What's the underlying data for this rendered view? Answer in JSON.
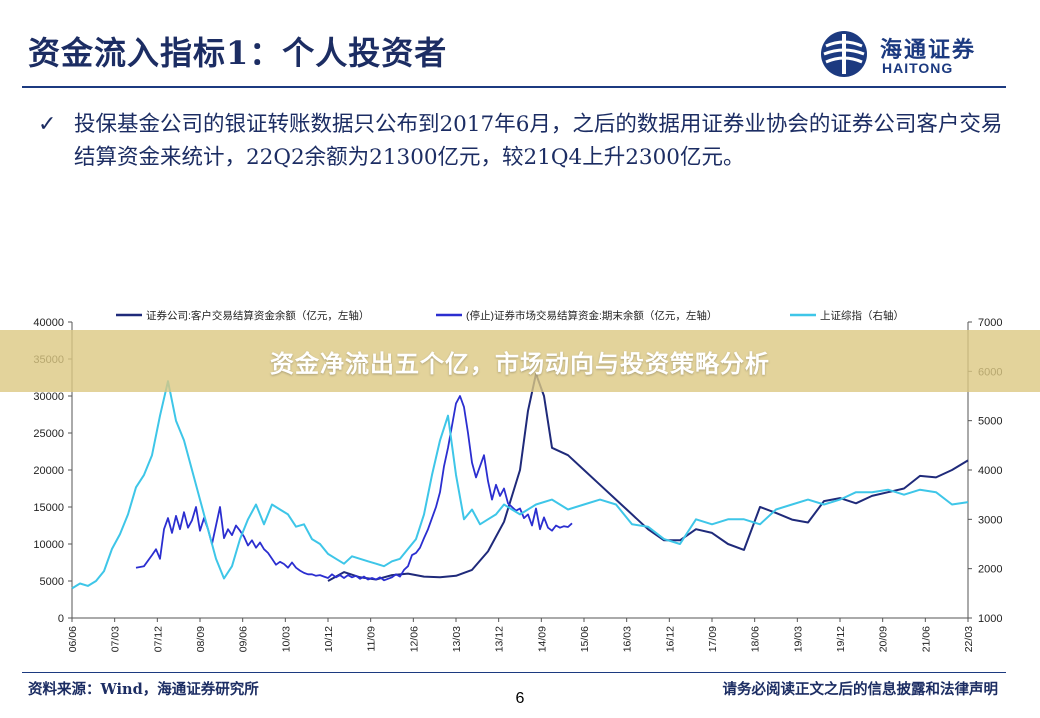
{
  "slide": {
    "title": "资金流入指标1：个人投资者",
    "logo": {
      "cn": "海通证券",
      "en": "HAITONG"
    },
    "bullet": "投保基金公司的银证转账数据只公布到2017年6月，之后的数据用证券业协会的证券公司客户交易结算资金来统计，22Q2余额为21300亿元，较21Q4上升2300亿元。",
    "banner": "资金净流出五个亿，市场动向与投资策略分析",
    "source": "资料来源：Wind，海通证券研究所",
    "disclaimer": "请务必阅读正文之后的信息披露和法律声明",
    "page_number": "6"
  },
  "chart_data": {
    "type": "line",
    "x_ticks": [
      "06/06",
      "07/03",
      "07/12",
      "08/09",
      "09/06",
      "10/03",
      "10/12",
      "11/09",
      "12/06",
      "13/03",
      "13/12",
      "14/09",
      "15/06",
      "16/03",
      "16/12",
      "17/09",
      "18/06",
      "19/03",
      "19/12",
      "20/09",
      "21/06",
      "22/03"
    ],
    "y_left": {
      "ylim": [
        0,
        40000
      ],
      "ticks": [
        "0",
        "5000",
        "10000",
        "15000",
        "20000",
        "25000",
        "30000",
        "35000",
        "40000"
      ]
    },
    "y_right": {
      "ylim": [
        1000,
        7000
      ],
      "ticks": [
        "1000",
        "2000",
        "3000",
        "4000",
        "5000",
        "6000",
        "7000"
      ]
    },
    "series": [
      {
        "name": "证券公司:客户交易结算资金余额（亿元，左轴）",
        "color": "#1f2a7a",
        "axis": "left",
        "points": [
          [
            32,
            5000
          ],
          [
            34,
            6200
          ],
          [
            36,
            5500
          ],
          [
            38,
            5200
          ],
          [
            40,
            5800
          ],
          [
            42,
            6000
          ],
          [
            44,
            5600
          ],
          [
            46,
            5500
          ],
          [
            48,
            5700
          ],
          [
            50,
            6500
          ],
          [
            52,
            9000
          ],
          [
            54,
            13000
          ],
          [
            56,
            20000
          ],
          [
            57,
            28000
          ],
          [
            58,
            33000
          ],
          [
            59,
            30000
          ],
          [
            60,
            23000
          ],
          [
            62,
            22000
          ],
          [
            64,
            20000
          ],
          [
            66,
            18000
          ],
          [
            68,
            16000
          ],
          [
            70,
            14000
          ],
          [
            72,
            12000
          ],
          [
            74,
            10500
          ],
          [
            76,
            10500
          ],
          [
            78,
            12000
          ],
          [
            80,
            11500
          ],
          [
            82,
            10000
          ],
          [
            84,
            9200
          ],
          [
            86,
            15000
          ],
          [
            88,
            14200
          ],
          [
            90,
            13300
          ],
          [
            92,
            12900
          ],
          [
            94,
            15800
          ],
          [
            96,
            16200
          ],
          [
            98,
            15500
          ],
          [
            100,
            16500
          ],
          [
            102,
            17000
          ],
          [
            104,
            17500
          ],
          [
            106,
            19200
          ],
          [
            108,
            19000
          ],
          [
            110,
            20000
          ],
          [
            112,
            21300
          ]
        ]
      },
      {
        "name": "(停止)证券市场交易结算资金:期末余额（亿元，左轴）",
        "color": "#2b2ed0",
        "axis": "left",
        "points": [
          [
            8,
            6800
          ],
          [
            9,
            7000
          ],
          [
            10,
            8500
          ],
          [
            10.5,
            9300
          ],
          [
            11,
            8000
          ],
          [
            11.5,
            12000
          ],
          [
            12,
            13500
          ],
          [
            12.5,
            11500
          ],
          [
            13,
            13800
          ],
          [
            13.5,
            12000
          ],
          [
            14,
            14300
          ],
          [
            14.5,
            12200
          ],
          [
            15,
            13200
          ],
          [
            15.5,
            15000
          ],
          [
            16,
            11800
          ],
          [
            16.5,
            13500
          ],
          [
            17,
            12000
          ],
          [
            17.5,
            10000
          ],
          [
            18,
            12500
          ],
          [
            18.5,
            15000
          ],
          [
            19,
            10800
          ],
          [
            19.5,
            12000
          ],
          [
            20,
            11200
          ],
          [
            20.5,
            12500
          ],
          [
            21,
            11800
          ],
          [
            21.5,
            11000
          ],
          [
            22,
            9800
          ],
          [
            22.5,
            10500
          ],
          [
            23,
            9500
          ],
          [
            23.5,
            10200
          ],
          [
            24,
            9300
          ],
          [
            24.5,
            8800
          ],
          [
            25,
            8000
          ],
          [
            25.5,
            7200
          ],
          [
            26,
            7600
          ],
          [
            26.5,
            7300
          ],
          [
            27,
            6800
          ],
          [
            27.5,
            7500
          ],
          [
            28,
            6800
          ],
          [
            28.5,
            6400
          ],
          [
            29,
            6100
          ],
          [
            29.5,
            5900
          ],
          [
            30,
            5900
          ],
          [
            30.5,
            5700
          ],
          [
            31,
            5800
          ],
          [
            31.5,
            5600
          ],
          [
            32,
            5400
          ],
          [
            32.5,
            5900
          ],
          [
            33,
            5500
          ],
          [
            33.5,
            5800
          ],
          [
            34,
            5400
          ],
          [
            34.5,
            5800
          ],
          [
            35,
            5500
          ],
          [
            35.5,
            5700
          ],
          [
            36,
            5300
          ],
          [
            36.5,
            5600
          ],
          [
            37,
            5200
          ],
          [
            37.5,
            5400
          ],
          [
            38,
            5200
          ],
          [
            38.5,
            5500
          ],
          [
            39,
            5100
          ],
          [
            39.5,
            5300
          ],
          [
            40,
            5500
          ],
          [
            40.5,
            5900
          ],
          [
            41,
            5600
          ],
          [
            41.5,
            6500
          ],
          [
            42,
            7000
          ],
          [
            42.5,
            8500
          ],
          [
            43,
            8800
          ],
          [
            43.5,
            9500
          ],
          [
            44,
            10800
          ],
          [
            44.5,
            12000
          ],
          [
            45,
            13500
          ],
          [
            45.5,
            15000
          ],
          [
            46,
            17000
          ],
          [
            46.5,
            20500
          ],
          [
            47,
            23000
          ],
          [
            47.5,
            26000
          ],
          [
            48,
            29000
          ],
          [
            48.5,
            30000
          ],
          [
            49,
            28500
          ],
          [
            49.5,
            25000
          ],
          [
            50,
            21000
          ],
          [
            50.5,
            19000
          ],
          [
            51,
            20500
          ],
          [
            51.5,
            22000
          ],
          [
            52,
            18500
          ],
          [
            52.5,
            16000
          ],
          [
            53,
            18000
          ],
          [
            53.5,
            16500
          ],
          [
            54,
            17500
          ],
          [
            54.5,
            15500
          ],
          [
            55,
            15000
          ],
          [
            55.5,
            14500
          ],
          [
            56,
            14800
          ],
          [
            56.5,
            13500
          ],
          [
            57,
            14000
          ],
          [
            57.5,
            12500
          ],
          [
            58,
            14800
          ],
          [
            58.5,
            12000
          ],
          [
            59,
            13600
          ],
          [
            59.5,
            12200
          ],
          [
            60,
            11800
          ],
          [
            60.5,
            12500
          ],
          [
            61,
            12200
          ],
          [
            61.5,
            12400
          ],
          [
            62,
            12300
          ],
          [
            62.5,
            12800
          ]
        ]
      },
      {
        "name": "上证综指（右轴）",
        "color": "#3ec6e8",
        "axis": "right",
        "points": [
          [
            0,
            1600
          ],
          [
            1,
            1700
          ],
          [
            2,
            1650
          ],
          [
            3,
            1750
          ],
          [
            4,
            1950
          ],
          [
            5,
            2400
          ],
          [
            6,
            2700
          ],
          [
            7,
            3100
          ],
          [
            8,
            3650
          ],
          [
            9,
            3900
          ],
          [
            10,
            4300
          ],
          [
            11,
            5100
          ],
          [
            12,
            5800
          ],
          [
            13,
            5000
          ],
          [
            14,
            4600
          ],
          [
            15,
            4000
          ],
          [
            16,
            3400
          ],
          [
            17,
            2800
          ],
          [
            18,
            2200
          ],
          [
            19,
            1800
          ],
          [
            20,
            2050
          ],
          [
            21,
            2600
          ],
          [
            22,
            3000
          ],
          [
            23,
            3300
          ],
          [
            24,
            2900
          ],
          [
            25,
            3300
          ],
          [
            26,
            3200
          ],
          [
            27,
            3100
          ],
          [
            28,
            2850
          ],
          [
            29,
            2900
          ],
          [
            30,
            2600
          ],
          [
            31,
            2500
          ],
          [
            32,
            2300
          ],
          [
            33,
            2200
          ],
          [
            34,
            2100
          ],
          [
            35,
            2250
          ],
          [
            36,
            2200
          ],
          [
            37,
            2150
          ],
          [
            38,
            2100
          ],
          [
            39,
            2050
          ],
          [
            40,
            2150
          ],
          [
            41,
            2200
          ],
          [
            42,
            2400
          ],
          [
            43,
            2600
          ],
          [
            44,
            3100
          ],
          [
            45,
            3900
          ],
          [
            46,
            4600
          ],
          [
            47,
            5100
          ],
          [
            48,
            3900
          ],
          [
            49,
            3000
          ],
          [
            50,
            3200
          ],
          [
            51,
            2900
          ],
          [
            52,
            3000
          ],
          [
            53,
            3100
          ],
          [
            54,
            3300
          ],
          [
            55,
            3200
          ],
          [
            56,
            3100
          ],
          [
            58,
            3300
          ],
          [
            60,
            3400
          ],
          [
            62,
            3200
          ],
          [
            64,
            3300
          ],
          [
            66,
            3400
          ],
          [
            68,
            3300
          ],
          [
            70,
            2900
          ],
          [
            72,
            2850
          ],
          [
            74,
            2600
          ],
          [
            76,
            2500
          ],
          [
            78,
            3000
          ],
          [
            80,
            2900
          ],
          [
            82,
            3000
          ],
          [
            84,
            3000
          ],
          [
            86,
            2900
          ],
          [
            88,
            3200
          ],
          [
            90,
            3300
          ],
          [
            92,
            3400
          ],
          [
            94,
            3300
          ],
          [
            96,
            3400
          ],
          [
            98,
            3550
          ],
          [
            100,
            3550
          ],
          [
            102,
            3600
          ],
          [
            104,
            3500
          ],
          [
            106,
            3600
          ],
          [
            108,
            3550
          ],
          [
            110,
            3300
          ],
          [
            112,
            3350
          ]
        ]
      }
    ],
    "legend_placement": "top",
    "grid": false
  }
}
